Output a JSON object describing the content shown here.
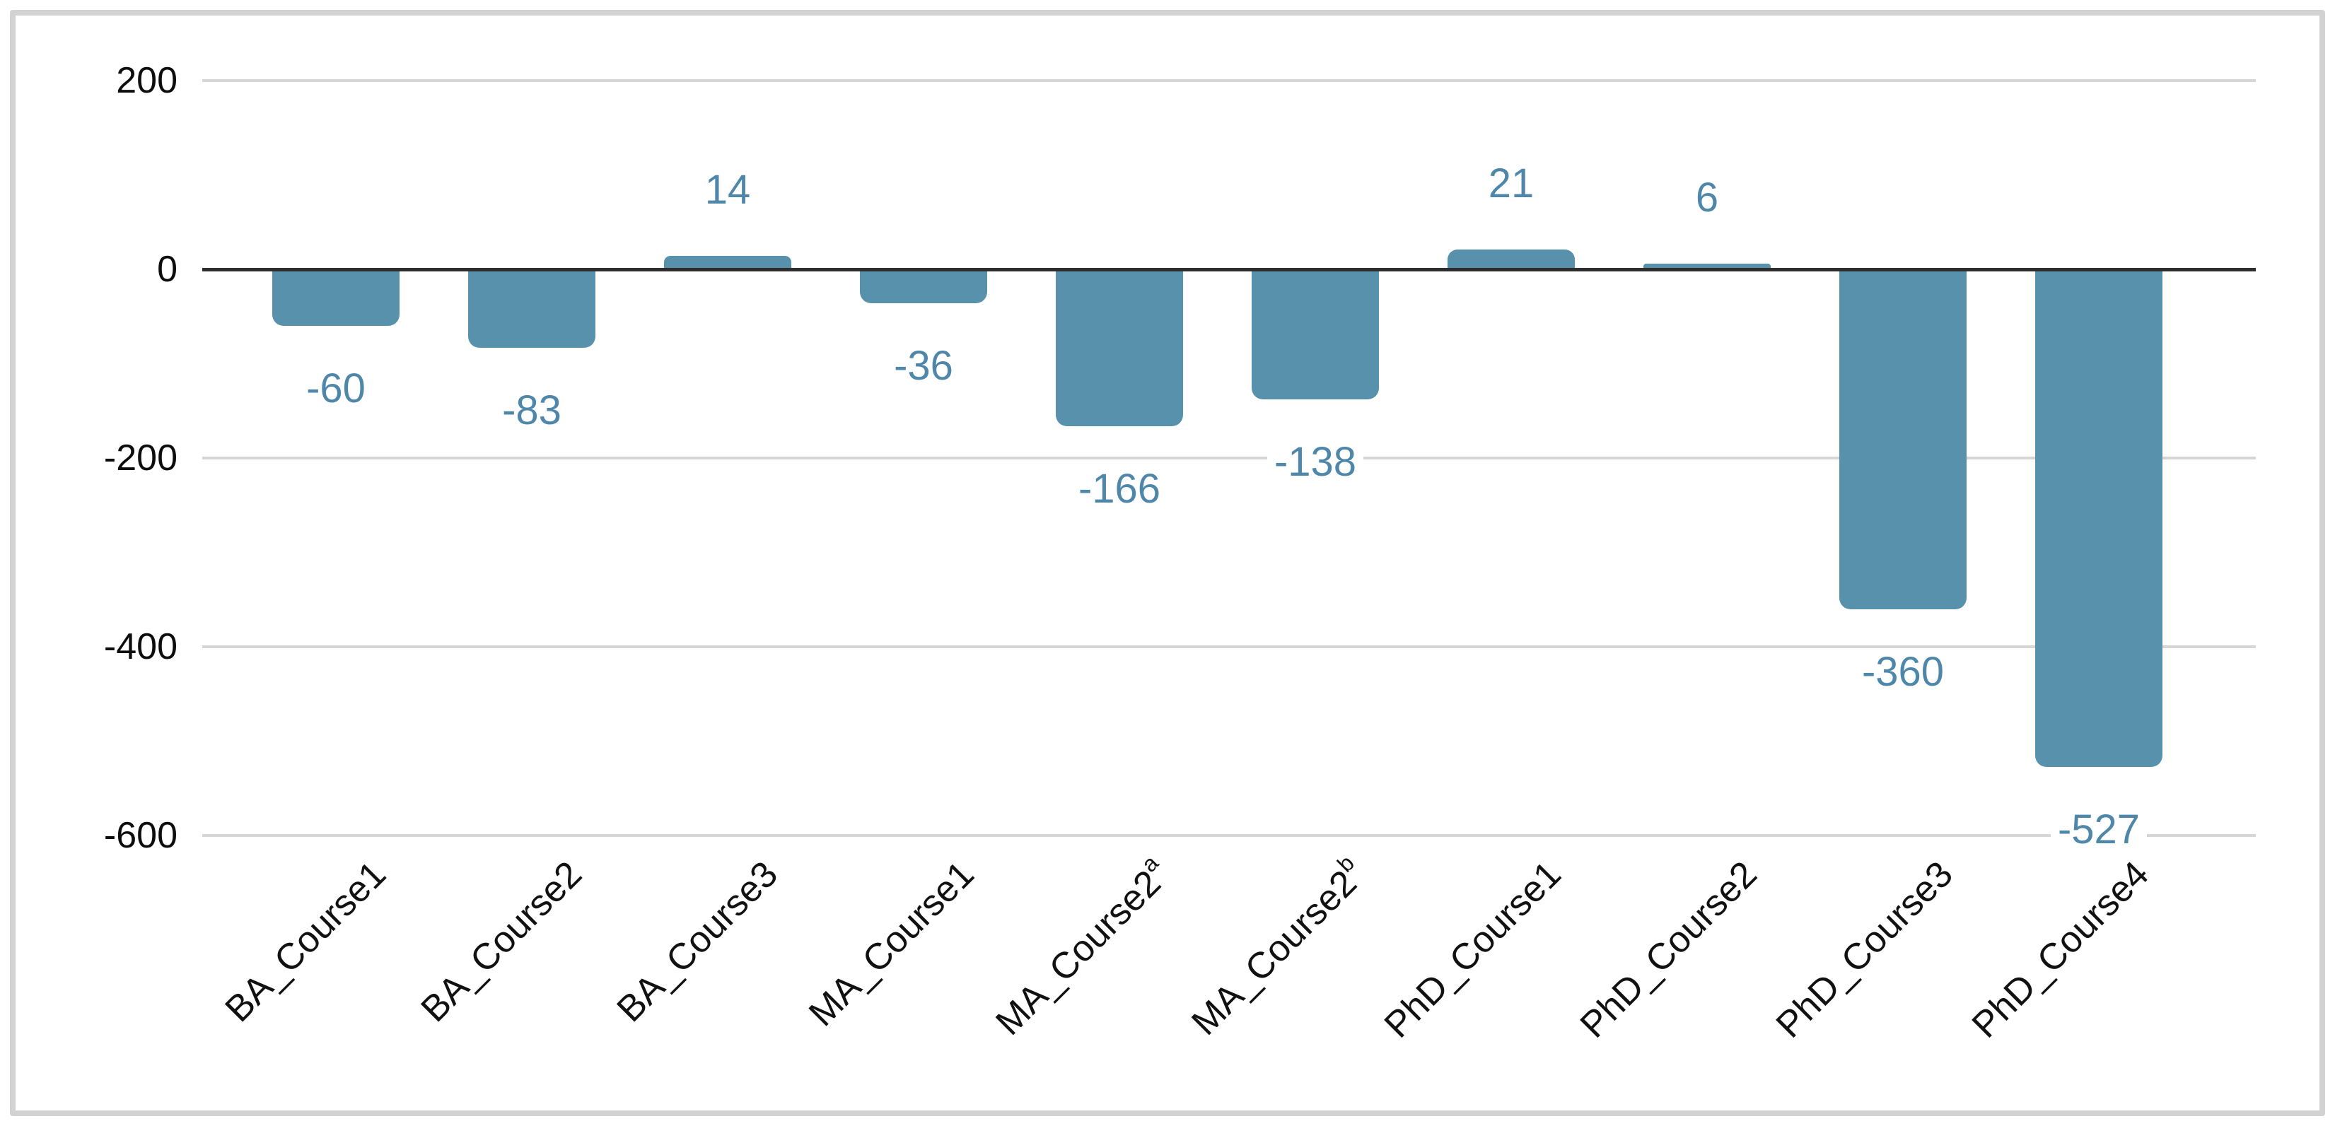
{
  "chart_data": {
    "type": "bar",
    "title": "",
    "xlabel": "",
    "ylabel": "",
    "categories": [
      {
        "label": "BA_Course1",
        "sup": ""
      },
      {
        "label": "BA_Course2",
        "sup": ""
      },
      {
        "label": "BA_Course3",
        "sup": ""
      },
      {
        "label": "MA_Course1",
        "sup": ""
      },
      {
        "label": "MA_Course2",
        "sup": "a"
      },
      {
        "label": "MA_Course2",
        "sup": "b"
      },
      {
        "label": "PhD_Course1",
        "sup": ""
      },
      {
        "label": "PhD_Course2",
        "sup": ""
      },
      {
        "label": "PhD_Course3",
        "sup": ""
      },
      {
        "label": "PhD_Course4",
        "sup": ""
      }
    ],
    "values": [
      -60,
      -83,
      14,
      -36,
      -166,
      -138,
      21,
      6,
      -360,
      -527
    ],
    "data_labels": [
      "-60",
      "-83",
      "14",
      "-36",
      "-166",
      "-138",
      "21",
      "6",
      "-360",
      "-527"
    ],
    "yticks": [
      200,
      0,
      -200,
      -400,
      -600
    ],
    "ylim": [
      -600,
      200
    ],
    "grid": true,
    "legend": "none",
    "colors": {
      "bar_fill": "#5891ab",
      "data_label_text": "#4e87a9",
      "axis_tick_text": "#0d0d0d",
      "zero_axis_line": "#2d2d2d",
      "gridline": "#d6d6d6",
      "frame_border": "#d2d2d2",
      "background": "#ffffff"
    }
  }
}
